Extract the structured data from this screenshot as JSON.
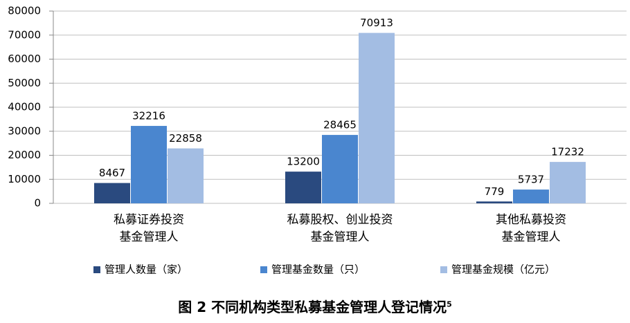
{
  "chart_data": {
    "type": "bar",
    "title": "图 2 不同机构类型私募基金管理人登记情况",
    "title_superscript": "5",
    "categories": [
      "私募证券投资\n基金管理人",
      "私募股权、创业投资\n基金管理人",
      "其他私募投资\n基金管理人"
    ],
    "series": [
      {
        "name": "管理人数量（家）",
        "color": "#2a4a7f",
        "values": [
          8467,
          13200,
          779
        ]
      },
      {
        "name": "管理基金数量（只）",
        "color": "#4a86cf",
        "values": [
          32216,
          28465,
          5737
        ]
      },
      {
        "name": "管理基金规模（亿元）",
        "color": "#a3bde3",
        "values": [
          22858,
          70913,
          17232
        ]
      }
    ],
    "ylim": [
      0,
      80000
    ],
    "yticks": [
      0,
      10000,
      20000,
      30000,
      40000,
      50000,
      60000,
      70000,
      80000
    ],
    "grid": true,
    "legend": "bottom"
  }
}
